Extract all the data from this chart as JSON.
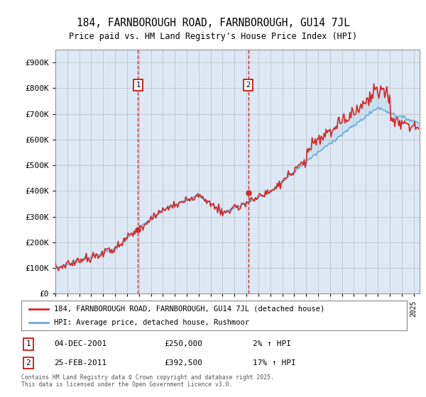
{
  "title": "184, FARNBOROUGH ROAD, FARNBOROUGH, GU14 7JL",
  "subtitle": "Price paid vs. HM Land Registry's House Price Index (HPI)",
  "bg_color": "#dce9f5",
  "outer_bg_color": "#ffffff",
  "legend1": "184, FARNBOROUGH ROAD, FARNBOROUGH, GU14 7JL (detached house)",
  "legend2": "HPI: Average price, detached house, Rushmoor",
  "annotation1_date": "04-DEC-2001",
  "annotation1_price": "£250,000",
  "annotation1_hpi": "2% ↑ HPI",
  "annotation2_date": "25-FEB-2011",
  "annotation2_price": "£392,500",
  "annotation2_hpi": "17% ↑ HPI",
  "footnote": "Contains HM Land Registry data © Crown copyright and database right 2025.\nThis data is licensed under the Open Government Licence v3.0.",
  "ylim": [
    0,
    950000
  ],
  "yticks": [
    0,
    100000,
    200000,
    300000,
    400000,
    500000,
    600000,
    700000,
    800000,
    900000
  ],
  "ytick_labels": [
    "£0",
    "£100K",
    "£200K",
    "£300K",
    "£400K",
    "£500K",
    "£600K",
    "£700K",
    "£800K",
    "£900K"
  ],
  "hpi_color": "#6baed6",
  "price_color": "#d62728",
  "vline_color": "#d62728",
  "marker1_x": 2001.92,
  "marker1_y": 250000,
  "marker2_x": 2011.15,
  "marker2_y": 392500,
  "xmin": 1995,
  "xmax": 2025.5
}
